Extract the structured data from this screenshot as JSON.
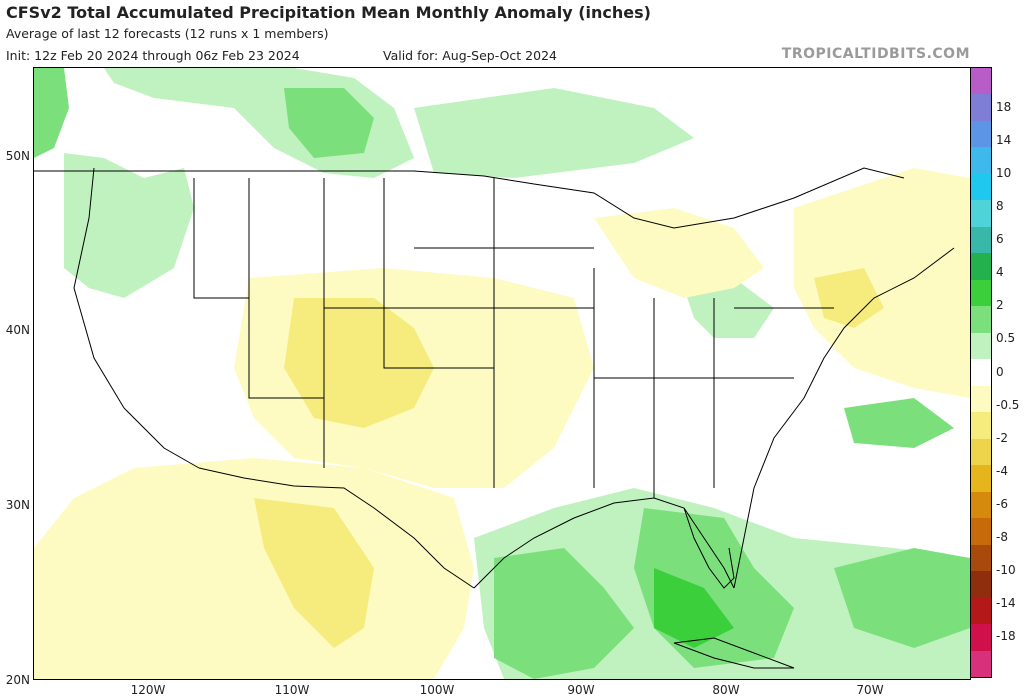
{
  "header": {
    "title": "CFSv2 Total Accumulated Precipitation Mean Monthly Anomaly (inches)",
    "subtitle": "Average of last 12 forecasts (12 runs x 1 members)",
    "init": "Init: 12z Feb 20 2024 through 06z Feb 23 2024",
    "valid": "Valid for: Aug-Sep-Oct 2024",
    "source": "TROPICALTIDBITS.COM"
  },
  "axes": {
    "lat_labels": [
      "50N",
      "40N",
      "30N",
      "20N"
    ],
    "lon_labels": [
      "120W",
      "110W",
      "100W",
      "90W",
      "80W",
      "70W"
    ]
  },
  "colorbar": {
    "labels": [
      "18",
      "14",
      "10",
      "8",
      "6",
      "4",
      "2",
      "0.5",
      "0",
      "-0.5",
      "-2",
      "-4",
      "-6",
      "-8",
      "-10",
      "-14",
      "-18"
    ],
    "colors": [
      "#b85cc8",
      "#7e7ed6",
      "#5d95e6",
      "#3fb9ec",
      "#1fc8ef",
      "#4dd3d8",
      "#38b8a8",
      "#22b14c",
      "#3ccf3c",
      "#7be07b",
      "#bff2bf",
      "#ffffff",
      "#fdfbc2",
      "#f6ec7d",
      "#eed44a",
      "#e5b51b",
      "#d58a0e",
      "#c66a0a",
      "#a84a0c",
      "#8e2e0c",
      "#b41818",
      "#d0104a",
      "#d8307a"
    ]
  },
  "legend": {
    "min_anomaly": -18,
    "max_anomaly": 18,
    "units": "inches"
  }
}
